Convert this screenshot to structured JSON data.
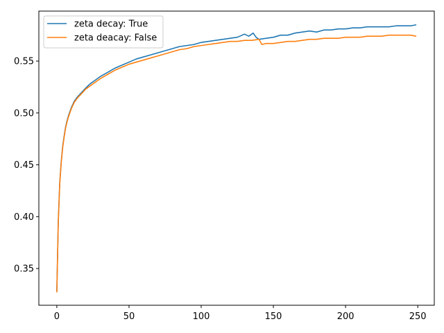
{
  "chart_data": {
    "type": "line",
    "title": "",
    "xlabel": "",
    "ylabel": "",
    "xlim": [
      -12.45,
      261.45
    ],
    "ylim": [
      0.3146,
      0.5982
    ],
    "xticks": [
      0,
      50,
      100,
      150,
      200,
      250
    ],
    "yticks": [
      0.35,
      0.4,
      0.45,
      0.5,
      0.55
    ],
    "xtick_labels": [
      "0",
      "50",
      "100",
      "150",
      "200",
      "250"
    ],
    "ytick_labels": [
      "0.35",
      "0.40",
      "0.45",
      "0.50",
      "0.55"
    ],
    "grid": false,
    "legend_position": "upper-left",
    "x_range": [
      0,
      249
    ],
    "series": [
      {
        "name": "zeta decay: True",
        "color": "#1f77b4",
        "x": [
          0,
          1,
          2,
          3,
          4,
          5,
          6,
          7,
          8,
          9,
          10,
          12,
          14,
          16,
          18,
          20,
          23,
          26,
          30,
          35,
          40,
          45,
          50,
          55,
          60,
          65,
          70,
          75,
          80,
          85,
          90,
          95,
          100,
          105,
          110,
          115,
          120,
          125,
          130,
          133,
          136,
          138,
          140,
          145,
          150,
          155,
          160,
          165,
          170,
          175,
          180,
          185,
          190,
          195,
          200,
          205,
          210,
          215,
          220,
          225,
          230,
          235,
          240,
          245,
          249
        ],
        "values": [
          0.328,
          0.395,
          0.432,
          0.452,
          0.467,
          0.477,
          0.486,
          0.492,
          0.497,
          0.501,
          0.505,
          0.511,
          0.515,
          0.518,
          0.521,
          0.524,
          0.528,
          0.531,
          0.535,
          0.539,
          0.543,
          0.546,
          0.549,
          0.552,
          0.554,
          0.556,
          0.558,
          0.56,
          0.562,
          0.564,
          0.565,
          0.566,
          0.568,
          0.569,
          0.57,
          0.571,
          0.572,
          0.573,
          0.576,
          0.574,
          0.577,
          0.573,
          0.571,
          0.572,
          0.573,
          0.575,
          0.575,
          0.577,
          0.578,
          0.579,
          0.578,
          0.58,
          0.58,
          0.581,
          0.581,
          0.582,
          0.582,
          0.583,
          0.583,
          0.583,
          0.583,
          0.584,
          0.584,
          0.584,
          0.585
        ]
      },
      {
        "name": "zeta deacay: False",
        "color": "#ff7f0e",
        "x": [
          0,
          1,
          2,
          3,
          4,
          5,
          6,
          7,
          8,
          9,
          10,
          12,
          14,
          16,
          18,
          20,
          23,
          26,
          30,
          35,
          40,
          45,
          50,
          55,
          60,
          65,
          70,
          75,
          80,
          85,
          90,
          95,
          100,
          105,
          110,
          115,
          120,
          125,
          130,
          135,
          140,
          142,
          145,
          150,
          155,
          160,
          165,
          170,
          175,
          180,
          185,
          190,
          195,
          200,
          205,
          210,
          215,
          220,
          225,
          230,
          235,
          240,
          245,
          249
        ],
        "values": [
          0.327,
          0.394,
          0.431,
          0.451,
          0.466,
          0.476,
          0.485,
          0.491,
          0.496,
          0.5,
          0.504,
          0.51,
          0.514,
          0.517,
          0.52,
          0.523,
          0.526,
          0.529,
          0.533,
          0.537,
          0.541,
          0.544,
          0.547,
          0.549,
          0.551,
          0.553,
          0.555,
          0.557,
          0.559,
          0.561,
          0.562,
          0.564,
          0.565,
          0.566,
          0.567,
          0.568,
          0.569,
          0.569,
          0.57,
          0.57,
          0.571,
          0.566,
          0.567,
          0.567,
          0.568,
          0.569,
          0.569,
          0.57,
          0.571,
          0.571,
          0.572,
          0.572,
          0.572,
          0.573,
          0.573,
          0.573,
          0.574,
          0.574,
          0.574,
          0.575,
          0.575,
          0.575,
          0.575,
          0.574
        ]
      }
    ]
  }
}
